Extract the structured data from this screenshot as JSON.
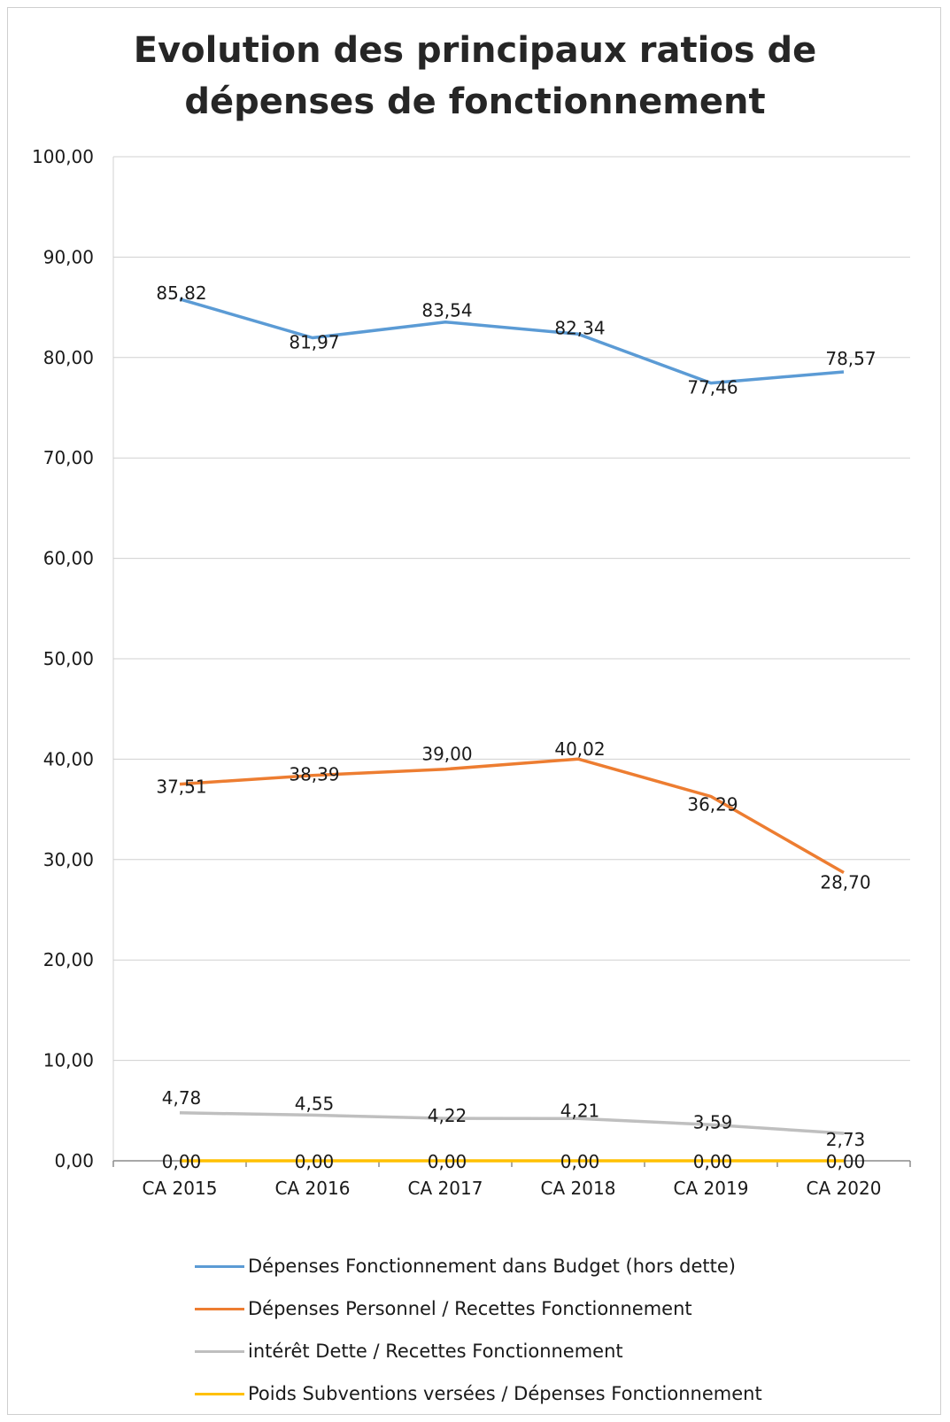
{
  "chart_data": {
    "type": "line",
    "title": "Evolution des principaux ratios de dépenses de fonctionnement",
    "title_lines": [
      "Evolution des principaux ratios de",
      "dépenses de fonctionnement"
    ],
    "categories": [
      "CA 2015",
      "CA 2016",
      "CA 2017",
      "CA 2018",
      "CA 2019",
      "CA 2020"
    ],
    "ylim": [
      0,
      100
    ],
    "yticks": [
      "0,00",
      "10,00",
      "20,00",
      "30,00",
      "40,00",
      "50,00",
      "60,00",
      "70,00",
      "80,00",
      "90,00",
      "100,00"
    ],
    "grid": true,
    "legend_position": "bottom",
    "series": [
      {
        "name": "Dépenses Fonctionnement dans Budget (hors dette)",
        "color": "#5b9bd5",
        "values": [
          85.82,
          81.97,
          83.54,
          82.34,
          77.46,
          78.57
        ],
        "labels": [
          "85,82",
          "81,97",
          "83,54",
          "82,34",
          "77,46",
          "78,57"
        ]
      },
      {
        "name": "Dépenses Personnel / Recettes Fonctionnement",
        "color": "#ed7d31",
        "values": [
          37.51,
          38.39,
          39.0,
          40.02,
          36.29,
          28.7
        ],
        "labels": [
          "37,51",
          "38,39",
          "39,00",
          "40,02",
          "36,29",
          "28,70"
        ]
      },
      {
        "name": "intérêt Dette / Recettes Fonctionnement",
        "color": "#bfbfbf",
        "values": [
          4.78,
          4.55,
          4.22,
          4.21,
          3.59,
          2.73
        ],
        "labels": [
          "4,78",
          "4,55",
          "4,22",
          "4,21",
          "3,59",
          "2,73"
        ]
      },
      {
        "name": "Poids Subventions versées / Dépenses Fonctionnement",
        "color": "#ffc000",
        "values": [
          0,
          0,
          0,
          0,
          0,
          0
        ],
        "labels": [
          "0,00",
          "0,00",
          "0,00",
          "0,00",
          "0,00",
          "0,00"
        ]
      }
    ]
  }
}
